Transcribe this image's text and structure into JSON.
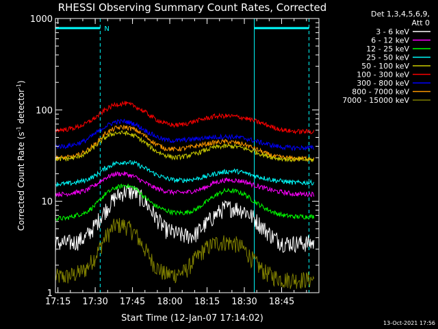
{
  "chart_data": {
    "type": "line",
    "title": "RHESSI Observing Summary Count Rates, Corrected",
    "xlabel": "Start Time (12-Jan-07 17:14:02)",
    "ylabel_main": "Corrected Count Rate (s",
    "ylabel_sup1": "-1",
    "ylabel_mid": " detector",
    "ylabel_sup2": "-1",
    "ylabel_end": ")",
    "y_scale": "log",
    "ylim": [
      1,
      1000
    ],
    "xlim_min": [
      0,
      106
    ],
    "x_ticks": [
      {
        "m": 1,
        "label": "17:15"
      },
      {
        "m": 16,
        "label": "17:30"
      },
      {
        "m": 31,
        "label": "17:45"
      },
      {
        "m": 46,
        "label": "18:00"
      },
      {
        "m": 61,
        "label": "18:15"
      },
      {
        "m": 76,
        "label": "18:30"
      },
      {
        "m": 91,
        "label": "18:45"
      }
    ],
    "y_ticks": [
      {
        "v": 1,
        "label": "1"
      },
      {
        "v": 10,
        "label": "10"
      },
      {
        "v": 100,
        "label": "100"
      },
      {
        "v": 1000,
        "label": "1000"
      }
    ],
    "legend": {
      "header1": "Det 1,3,4,5,6,9,",
      "header2": "Att 0",
      "placement": "right"
    },
    "annotations": {
      "night_label": "N",
      "night_bars": [
        [
          0,
          18
        ],
        [
          80,
          102
        ]
      ],
      "dashed_lines_min": [
        18,
        102
      ],
      "solid_lines_min": [
        0,
        80
      ]
    },
    "x": [
      0,
      4,
      8,
      12,
      16,
      20,
      24,
      28,
      32,
      36,
      40,
      44,
      48,
      52,
      56,
      60,
      64,
      68,
      72,
      76,
      80,
      84,
      88,
      92,
      96,
      100,
      104
    ],
    "series": [
      {
        "name": "3 - 6 keV",
        "color": "#ffffff",
        "values": [
          3.5,
          3.5,
          3.6,
          4.0,
          5.5,
          8,
          11,
          13,
          12.5,
          10,
          7,
          5,
          4.5,
          4.2,
          4.3,
          5.5,
          7,
          8.5,
          8.5,
          8,
          6.5,
          5,
          4,
          3.5,
          3.5,
          3.5,
          3.5
        ]
      },
      {
        "name": "6 - 12 keV",
        "color": "#ff00ff",
        "values": [
          12,
          12,
          12.5,
          13,
          15,
          18,
          20,
          20,
          18.5,
          16,
          14,
          13,
          12.5,
          12.5,
          13,
          14,
          16,
          17,
          17,
          16.5,
          15,
          14,
          13,
          12.5,
          12,
          12,
          12
        ]
      },
      {
        "name": "12 - 25 keV",
        "color": "#00ff00",
        "values": [
          6.5,
          6.5,
          7,
          7.5,
          9,
          12,
          14,
          15,
          14,
          11,
          9,
          8,
          7.5,
          7.5,
          8,
          9.5,
          11.5,
          13,
          13,
          12,
          10,
          8.5,
          7.5,
          7,
          6.8,
          6.8,
          6.8
        ]
      },
      {
        "name": "25 - 50 keV",
        "color": "#00ffff",
        "values": [
          15.5,
          15.5,
          16,
          17,
          19,
          23,
          26,
          27,
          26,
          23,
          20,
          18,
          17,
          17,
          17.5,
          18.5,
          20,
          21,
          21.5,
          20.5,
          19,
          18,
          17,
          16.5,
          16,
          16,
          16
        ]
      },
      {
        "name": "50 - 100 keV",
        "color": "#cccc00",
        "values": [
          29,
          29,
          30,
          33,
          40,
          50,
          56,
          56,
          52,
          44,
          36,
          32,
          30,
          31,
          33,
          36,
          39,
          40,
          40,
          38,
          35,
          32,
          30,
          29,
          28.5,
          28.5,
          28.5
        ]
      },
      {
        "name": "100 - 300 keV",
        "color": "#ff0000",
        "values": [
          60,
          61,
          64,
          70,
          82,
          100,
          115,
          118,
          110,
          95,
          80,
          71,
          68,
          70,
          75,
          80,
          85,
          86,
          85,
          82,
          76,
          70,
          64,
          60,
          58,
          58,
          58
        ]
      },
      {
        "name": "300 - 800 keV",
        "color": "#0000ff",
        "values": [
          40,
          40,
          42,
          46,
          55,
          66,
          74,
          75,
          70,
          60,
          52,
          47,
          46,
          47,
          48,
          49.5,
          50.5,
          51,
          50.5,
          49,
          46,
          43,
          40.5,
          39,
          38.5,
          38.5,
          38.5
        ]
      },
      {
        "name": "800 - 7000 keV",
        "color": "#ff9900",
        "values": [
          30,
          30,
          31,
          35,
          42,
          55,
          63,
          65,
          61,
          52,
          43,
          38,
          37,
          38,
          40,
          42,
          44,
          45,
          44,
          42,
          38,
          34,
          31,
          30,
          29.5,
          29.5,
          29.5
        ]
      },
      {
        "name": "7000 - 15000 keV",
        "color": "#808000",
        "values": [
          1.5,
          1.5,
          1.6,
          1.8,
          2.5,
          4,
          5.5,
          5.5,
          4.5,
          3,
          2,
          1.6,
          1.6,
          1.7,
          2.3,
          3,
          3.5,
          3.6,
          3.5,
          3,
          2.2,
          1.7,
          1.5,
          1.4,
          1.4,
          1.4,
          1.4
        ]
      }
    ],
    "grid": false
  },
  "footer": {
    "timestamp": "13-Oct-2021 17:56"
  }
}
